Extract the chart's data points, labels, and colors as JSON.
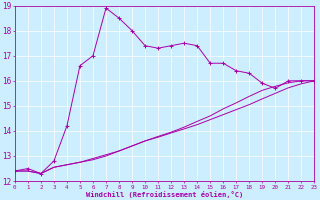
{
  "xlabel": "Windchill (Refroidissement éolien,°C)",
  "xlim": [
    0,
    23
  ],
  "ylim": [
    12,
    19
  ],
  "xticks": [
    0,
    1,
    2,
    3,
    4,
    5,
    6,
    7,
    8,
    9,
    10,
    11,
    12,
    13,
    14,
    15,
    16,
    17,
    18,
    19,
    20,
    21,
    22,
    23
  ],
  "yticks": [
    12,
    13,
    14,
    15,
    16,
    17,
    18,
    19
  ],
  "bg_color": "#cceeff",
  "line_color": "#aa00aa",
  "series1_x": [
    0,
    1,
    2,
    3,
    4,
    5,
    6,
    7,
    8,
    9,
    10,
    11,
    12,
    13,
    14,
    15,
    16,
    17,
    18,
    19,
    20,
    21,
    22,
    23
  ],
  "series1_y": [
    12.4,
    12.5,
    12.3,
    12.8,
    14.2,
    16.6,
    17.0,
    18.9,
    18.5,
    18.0,
    17.4,
    17.3,
    17.4,
    17.5,
    17.4,
    16.7,
    16.7,
    16.4,
    16.3,
    15.9,
    15.7,
    16.0,
    16.0,
    16.0
  ],
  "series2_x": [
    0,
    1,
    2,
    3,
    4,
    5,
    6,
    7,
    8,
    9,
    10,
    11,
    12,
    13,
    14,
    15,
    16,
    17,
    18,
    19,
    20,
    21,
    22,
    23
  ],
  "series2_y": [
    12.4,
    12.4,
    12.3,
    12.55,
    12.65,
    12.75,
    12.85,
    13.0,
    13.2,
    13.4,
    13.6,
    13.75,
    13.92,
    14.08,
    14.25,
    14.45,
    14.65,
    14.85,
    15.05,
    15.28,
    15.5,
    15.72,
    15.88,
    16.0
  ],
  "series3_x": [
    0,
    1,
    2,
    3,
    4,
    5,
    6,
    7,
    8,
    9,
    10,
    11,
    12,
    13,
    14,
    15,
    16,
    17,
    18,
    19,
    20,
    21,
    22,
    23
  ],
  "series3_y": [
    12.4,
    12.4,
    12.3,
    12.55,
    12.65,
    12.75,
    12.9,
    13.05,
    13.2,
    13.4,
    13.6,
    13.78,
    13.95,
    14.15,
    14.38,
    14.6,
    14.88,
    15.12,
    15.38,
    15.62,
    15.78,
    15.92,
    16.0,
    16.0
  ]
}
